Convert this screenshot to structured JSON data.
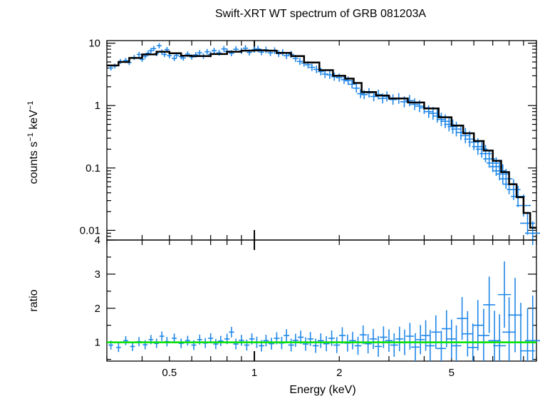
{
  "chart_data": [
    {
      "type": "scatter",
      "panel": "spectrum",
      "title": "Swift-XRT WT spectrum of GRB 081203A",
      "xlabel": "",
      "ylabel_main": "counts s",
      "ylabel_sup1": "−1",
      "ylabel_mid": " keV",
      "ylabel_sup2": "−1",
      "xscale": "log",
      "yscale": "log",
      "xlim": [
        0.3,
        10
      ],
      "ylim": [
        0.007,
        11
      ],
      "yticks": [
        {
          "value": 0.01,
          "label": "0.01"
        },
        {
          "value": 0.1,
          "label": "0.1"
        },
        {
          "value": 1,
          "label": "1"
        },
        {
          "value": 10,
          "label": "10"
        }
      ],
      "data_color": "#1f87e8",
      "model_color": "#000000",
      "model_x": [
        0.3,
        0.33,
        0.36,
        0.4,
        0.45,
        0.5,
        0.55,
        0.6,
        0.7,
        0.8,
        0.9,
        1.0,
        1.1,
        1.2,
        1.35,
        1.5,
        1.7,
        1.9,
        2.1,
        2.25,
        2.4,
        2.7,
        3.0,
        3.5,
        4.0,
        4.5,
        5.0,
        5.5,
        6.0,
        6.5,
        7.0,
        7.5,
        8.0,
        8.5,
        9.0,
        9.5,
        10.0
      ],
      "model_y": [
        4.4,
        5.0,
        5.8,
        6.6,
        7.3,
        6.9,
        6.3,
        6.2,
        6.7,
        7.3,
        7.6,
        7.7,
        7.6,
        7.0,
        6.2,
        4.9,
        3.7,
        3.0,
        2.7,
        2.3,
        1.65,
        1.45,
        1.3,
        1.12,
        0.9,
        0.65,
        0.48,
        0.36,
        0.27,
        0.19,
        0.13,
        0.086,
        0.055,
        0.034,
        0.019,
        0.011,
        0.0065
      ],
      "points": [
        [
          0.31,
          4.0
        ],
        [
          0.32,
          4.3
        ],
        [
          0.335,
          5.1
        ],
        [
          0.35,
          5.3
        ],
        [
          0.36,
          4.9
        ],
        [
          0.375,
          5.9
        ],
        [
          0.39,
          6.6
        ],
        [
          0.4,
          5.5
        ],
        [
          0.41,
          6.2
        ],
        [
          0.42,
          6.9
        ],
        [
          0.43,
          7.6
        ],
        [
          0.44,
          8.2
        ],
        [
          0.45,
          6.8
        ],
        [
          0.46,
          9.1
        ],
        [
          0.47,
          7.2
        ],
        [
          0.48,
          6.6
        ],
        [
          0.49,
          7.9
        ],
        [
          0.5,
          6.3
        ],
        [
          0.52,
          5.7
        ],
        [
          0.53,
          6.4
        ],
        [
          0.55,
          6.1
        ],
        [
          0.56,
          5.8
        ],
        [
          0.58,
          6.7
        ],
        [
          0.6,
          6.0
        ],
        [
          0.62,
          6.5
        ],
        [
          0.64,
          7.0
        ],
        [
          0.66,
          6.2
        ],
        [
          0.68,
          7.3
        ],
        [
          0.7,
          6.6
        ],
        [
          0.72,
          7.6
        ],
        [
          0.75,
          7.0
        ],
        [
          0.78,
          8.1
        ],
        [
          0.8,
          7.4
        ],
        [
          0.83,
          6.9
        ],
        [
          0.86,
          8.0
        ],
        [
          0.9,
          7.5
        ],
        [
          0.93,
          8.3
        ],
        [
          0.96,
          7.1
        ],
        [
          1.0,
          7.9
        ],
        [
          1.03,
          8.1
        ],
        [
          1.06,
          7.2
        ],
        [
          1.1,
          7.8
        ],
        [
          1.14,
          7.0
        ],
        [
          1.18,
          7.6
        ],
        [
          1.22,
          6.8
        ],
        [
          1.26,
          7.1
        ],
        [
          1.3,
          6.3
        ],
        [
          1.35,
          6.6
        ],
        [
          1.4,
          5.7
        ],
        [
          1.45,
          5.1
        ],
        [
          1.5,
          4.8
        ],
        [
          1.55,
          4.5
        ],
        [
          1.6,
          4.1
        ],
        [
          1.66,
          3.8
        ],
        [
          1.72,
          3.5
        ],
        [
          1.78,
          3.2
        ],
        [
          1.85,
          3.1
        ],
        [
          1.92,
          2.9
        ],
        [
          2.0,
          2.8
        ],
        [
          2.08,
          2.6
        ],
        [
          2.15,
          2.5
        ],
        [
          2.22,
          2.2
        ],
        [
          2.3,
          1.9
        ],
        [
          2.38,
          1.55
        ],
        [
          2.45,
          1.5
        ],
        [
          2.55,
          1.6
        ],
        [
          2.65,
          1.4
        ],
        [
          2.75,
          1.5
        ],
        [
          2.85,
          1.3
        ],
        [
          2.95,
          1.4
        ],
        [
          3.1,
          1.25
        ],
        [
          3.25,
          1.3
        ],
        [
          3.4,
          1.15
        ],
        [
          3.55,
          1.2
        ],
        [
          3.7,
          1.05
        ],
        [
          3.85,
          0.98
        ],
        [
          4.0,
          0.92
        ],
        [
          4.15,
          0.8
        ],
        [
          4.3,
          0.75
        ],
        [
          4.45,
          0.68
        ],
        [
          4.6,
          0.6
        ],
        [
          4.75,
          0.56
        ],
        [
          4.9,
          0.5
        ],
        [
          5.05,
          0.46
        ],
        [
          5.2,
          0.42
        ],
        [
          5.4,
          0.37
        ],
        [
          5.6,
          0.33
        ],
        [
          5.8,
          0.29
        ],
        [
          6.0,
          0.26
        ],
        [
          6.2,
          0.22
        ],
        [
          6.4,
          0.2
        ],
        [
          6.6,
          0.17
        ],
        [
          6.8,
          0.14
        ],
        [
          7.0,
          0.12
        ],
        [
          7.2,
          0.105
        ],
        [
          7.4,
          0.09
        ],
        [
          7.6,
          0.08
        ],
        [
          7.8,
          0.067
        ],
        [
          8.0,
          0.055
        ],
        [
          8.3,
          0.045
        ],
        [
          8.6,
          0.035
        ],
        [
          9.0,
          0.025
        ],
        [
          9.3,
          0.013
        ],
        [
          9.7,
          0.009
        ]
      ]
    },
    {
      "type": "scatter",
      "panel": "ratio",
      "xlabel": "Energy (keV)",
      "ylabel": "ratio",
      "xscale": "log",
      "yscale": "linear",
      "xlim": [
        0.3,
        10
      ],
      "ylim": [
        0.45,
        4.0
      ],
      "xticks": [
        {
          "value": 0.5,
          "label": "0.5"
        },
        {
          "value": 1,
          "label": "1"
        },
        {
          "value": 2,
          "label": "2"
        },
        {
          "value": 5,
          "label": "5"
        }
      ],
      "yticks": [
        {
          "value": 1,
          "label": "1"
        },
        {
          "value": 2,
          "label": "2"
        },
        {
          "value": 3,
          "label": "3"
        },
        {
          "value": 4,
          "label": "4"
        }
      ],
      "reference_value": 1,
      "reference_color": "#00e000",
      "data_color": "#1f87e8",
      "points": [
        [
          0.31,
          0.92
        ],
        [
          0.33,
          0.85
        ],
        [
          0.35,
          1.05
        ],
        [
          0.37,
          0.88
        ],
        [
          0.39,
          1.02
        ],
        [
          0.41,
          0.93
        ],
        [
          0.43,
          1.08
        ],
        [
          0.45,
          0.97
        ],
        [
          0.47,
          1.18
        ],
        [
          0.49,
          1.02
        ],
        [
          0.52,
          1.12
        ],
        [
          0.55,
          0.97
        ],
        [
          0.58,
          1.05
        ],
        [
          0.61,
          0.92
        ],
        [
          0.64,
          1.08
        ],
        [
          0.67,
          0.98
        ],
        [
          0.7,
          1.12
        ],
        [
          0.73,
          0.95
        ],
        [
          0.76,
          1.04
        ],
        [
          0.8,
          1.1
        ],
        [
          0.83,
          1.3
        ],
        [
          0.86,
          0.95
        ],
        [
          0.9,
          1.06
        ],
        [
          0.94,
          0.92
        ],
        [
          0.98,
          1.1
        ],
        [
          1.02,
          1.0
        ],
        [
          1.06,
          0.9
        ],
        [
          1.1,
          1.05
        ],
        [
          1.15,
          0.96
        ],
        [
          1.2,
          1.12
        ],
        [
          1.25,
          0.98
        ],
        [
          1.3,
          1.2
        ],
        [
          1.35,
          0.92
        ],
        [
          1.4,
          1.06
        ],
        [
          1.46,
          1.15
        ],
        [
          1.52,
          0.95
        ],
        [
          1.58,
          1.1
        ],
        [
          1.65,
          0.9
        ],
        [
          1.72,
          1.05
        ],
        [
          1.8,
          0.96
        ],
        [
          1.88,
          1.12
        ],
        [
          1.96,
          0.92
        ],
        [
          2.05,
          1.2
        ],
        [
          2.14,
          0.98
        ],
        [
          2.23,
          1.05
        ],
        [
          2.33,
          0.9
        ],
        [
          2.43,
          1.22
        ],
        [
          2.53,
          0.96
        ],
        [
          2.64,
          1.1
        ],
        [
          2.75,
          0.88
        ],
        [
          2.87,
          1.15
        ],
        [
          3.0,
          1.05
        ],
        [
          3.13,
          0.92
        ],
        [
          3.27,
          1.1
        ],
        [
          3.41,
          1.0
        ],
        [
          3.56,
          1.18
        ],
        [
          3.72,
          0.86
        ],
        [
          3.88,
          1.08
        ],
        [
          4.05,
          1.2
        ],
        [
          4.2,
          0.9
        ],
        [
          4.4,
          1.3
        ],
        [
          4.6,
          0.82
        ],
        [
          4.8,
          1.4
        ],
        [
          5.0,
          1.1
        ],
        [
          5.2,
          0.9
        ],
        [
          5.45,
          1.7
        ],
        [
          5.7,
          1.25
        ],
        [
          5.95,
          0.85
        ],
        [
          6.2,
          1.5
        ],
        [
          6.5,
          1.2
        ],
        [
          6.8,
          2.1
        ],
        [
          7.1,
          1.05
        ],
        [
          7.4,
          0.9
        ],
        [
          7.7,
          2.4
        ],
        [
          8.0,
          1.3
        ],
        [
          8.4,
          1.8
        ],
        [
          8.8,
          1.0
        ],
        [
          9.3,
          0.75
        ],
        [
          9.7,
          1.05
        ]
      ]
    }
  ]
}
